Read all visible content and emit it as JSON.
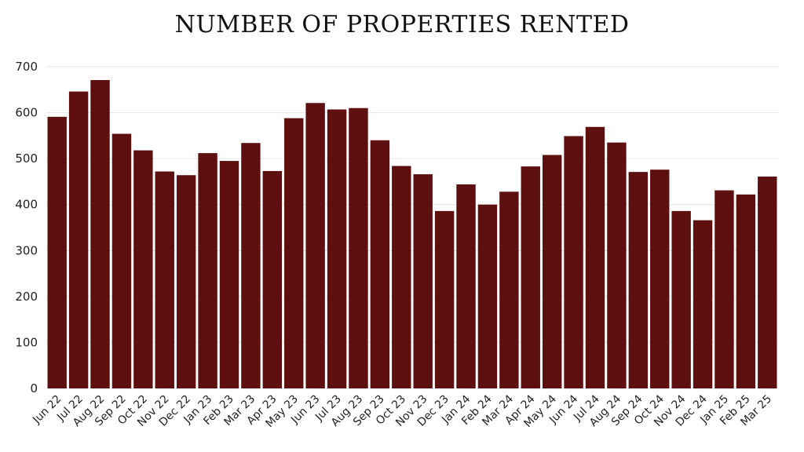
{
  "chart_data": {
    "type": "bar",
    "title": "NUMBER OF PROPERTIES RENTED",
    "xlabel": "",
    "ylabel": "",
    "ylim": [
      0,
      700
    ],
    "yticks": [
      0,
      100,
      200,
      300,
      400,
      500,
      600,
      700
    ],
    "grid": true,
    "bar_color": "#5e1010",
    "categories": [
      "Jun 22",
      "Jul 22",
      "Aug 22",
      "Sep 22",
      "Oct 22",
      "Nov 22",
      "Dec 22",
      "Jan 23",
      "Feb 23",
      "Mar 23",
      "Apr 23",
      "May 23",
      "Jun 23",
      "Jul 23",
      "Aug 23",
      "Sep 23",
      "Oct 23",
      "Nov 23",
      "Dec 23",
      "Jan 24",
      "Feb 24",
      "Mar 24",
      "Apr 24",
      "May 24",
      "Jun 24",
      "Jul 24",
      "Aug 24",
      "Sep 24",
      "Oct 24",
      "Nov 24",
      "Dec 24",
      "Jan 25",
      "Feb 25",
      "Mar 25"
    ],
    "values": [
      591,
      646,
      671,
      554,
      518,
      472,
      464,
      512,
      495,
      534,
      473,
      588,
      621,
      607,
      610,
      540,
      484,
      466,
      386,
      444,
      400,
      428,
      483,
      508,
      549,
      569,
      535,
      471,
      476,
      386,
      366,
      431,
      422,
      461
    ]
  }
}
